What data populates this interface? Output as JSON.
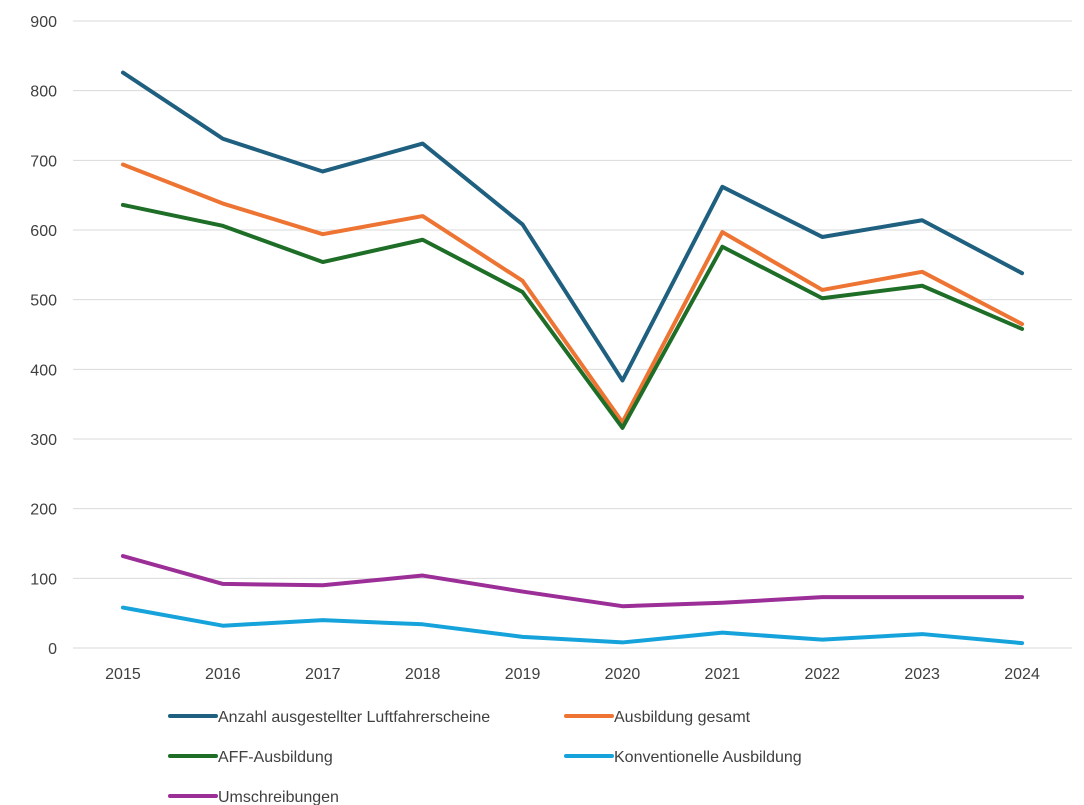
{
  "chart_data": {
    "type": "line",
    "title": "",
    "xlabel": "",
    "ylabel": "",
    "ylim": [
      0,
      900
    ],
    "yticks": [
      0,
      100,
      200,
      300,
      400,
      500,
      600,
      700,
      800,
      900
    ],
    "grid": true,
    "legend_position": "bottom",
    "categories": [
      "2015",
      "2016",
      "2017",
      "2018",
      "2019",
      "2020",
      "2021",
      "2022",
      "2023",
      "2024"
    ],
    "series": [
      {
        "name": "Anzahl ausgestellter Luftfahrerscheine",
        "color": "#1f5f7f",
        "values": [
          826,
          731,
          684,
          724,
          608,
          384,
          662,
          590,
          614,
          538
        ]
      },
      {
        "name": "Ausbildung gesamt",
        "color": "#ed7432",
        "values": [
          694,
          638,
          594,
          620,
          527,
          324,
          597,
          514,
          540,
          465
        ]
      },
      {
        "name": "AFF-Ausbildung",
        "color": "#1e6e27",
        "values": [
          636,
          606,
          554,
          586,
          511,
          316,
          576,
          502,
          520,
          458
        ]
      },
      {
        "name": "Konventionelle Ausbildung",
        "color": "#16a3db",
        "values": [
          58,
          32,
          40,
          34,
          16,
          8,
          22,
          12,
          20,
          7
        ]
      },
      {
        "name": "Umschreibungen",
        "color": "#9c2e98",
        "values": [
          132,
          92,
          90,
          104,
          81,
          60,
          65,
          73,
          73,
          73
        ]
      }
    ]
  }
}
